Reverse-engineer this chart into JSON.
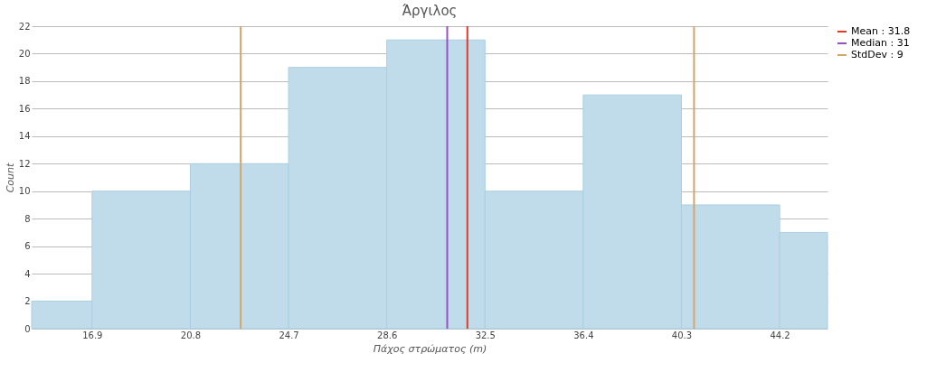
{
  "chart_data": {
    "type": "histogram",
    "title": "Άργιλος",
    "xlabel": "Πάχος στρώματος (m)",
    "ylabel": "Count",
    "bins": [
      14.5,
      16.9,
      20.8,
      24.7,
      28.6,
      32.5,
      36.4,
      40.3,
      44.2,
      46.1
    ],
    "values": [
      2,
      10,
      12,
      19,
      21,
      10,
      17,
      9,
      7
    ],
    "color": "#c0dcea",
    "xlim": [
      14.5,
      46.1
    ],
    "xticks": [
      16.9,
      20.8,
      24.7,
      28.6,
      32.5,
      36.4,
      40.3,
      44.2
    ],
    "ylim": [
      0,
      22
    ],
    "yticks": [
      0,
      2,
      4,
      6,
      8,
      10,
      12,
      14,
      16,
      18,
      20,
      22
    ],
    "grid": "y",
    "legend": "right",
    "series": [
      {
        "type": "line",
        "name": "Mean : 31.8",
        "color": "#e03a2a",
        "x": [
          31.8,
          31.8
        ],
        "values": [
          0,
          22
        ]
      },
      {
        "type": "line",
        "name": "Median : 31",
        "color": "#9b4fc4",
        "x": [
          31.0,
          31.0
        ],
        "values": [
          0,
          22
        ]
      },
      {
        "type": "line",
        "name": "StdDev : 9",
        "color": "#d4a56a",
        "x": [
          22.8,
          22.8,
          31.8,
          40.8,
          40.8
        ],
        "values": [
          0,
          22,
          null,
          0,
          22
        ]
      }
    ]
  }
}
